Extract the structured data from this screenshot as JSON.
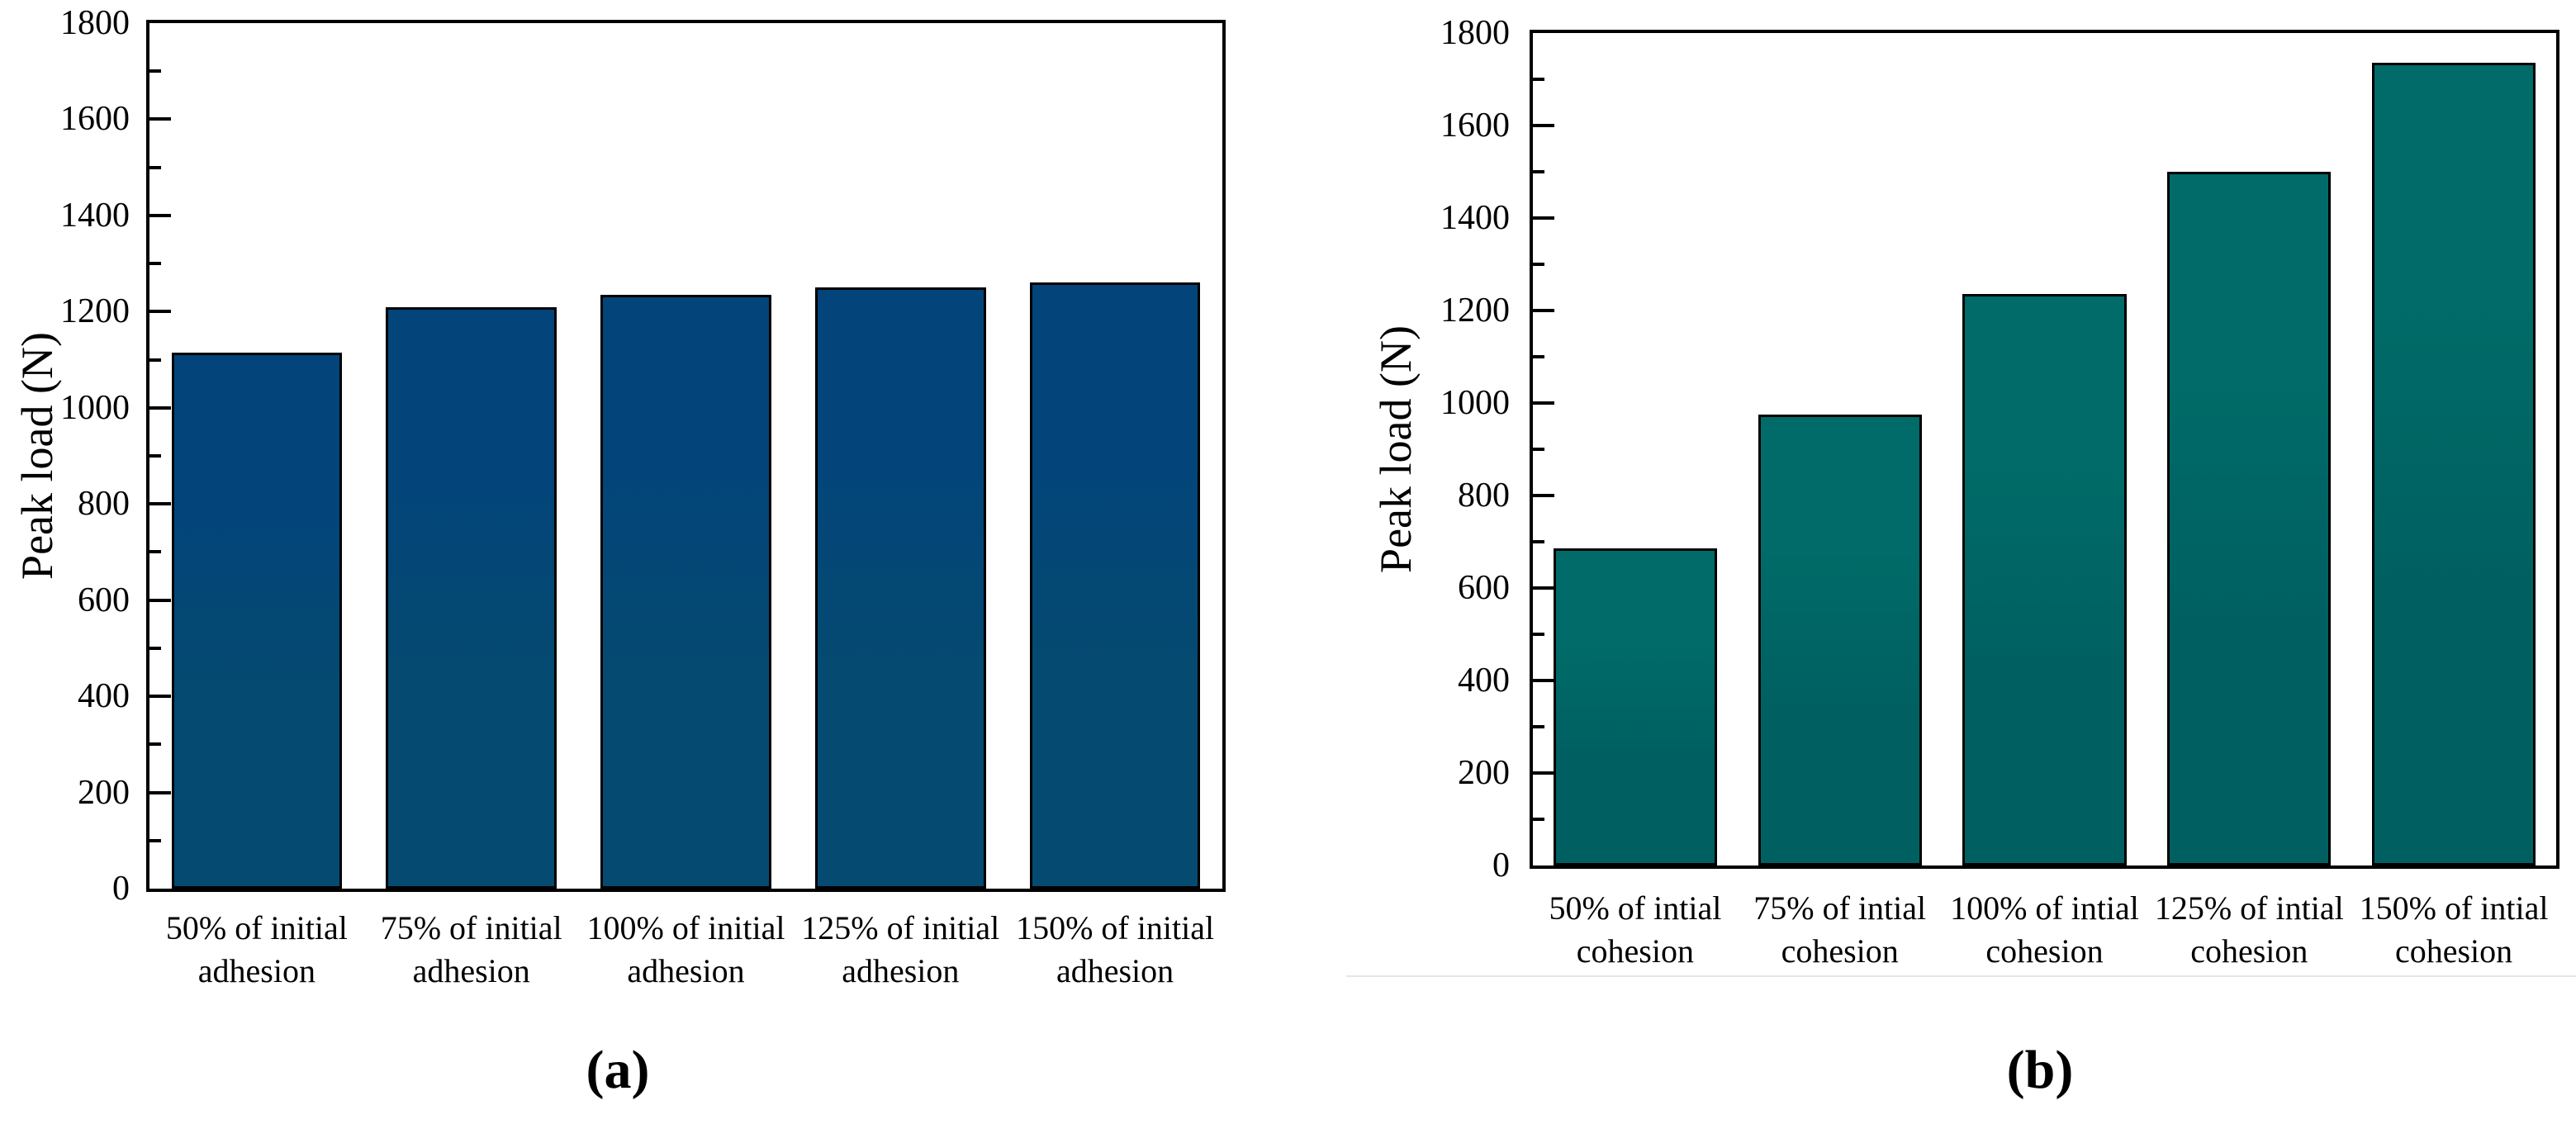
{
  "page": {
    "background": "#ffffff",
    "axis_color": "#000000",
    "divider_line_color": "#e6e6e6"
  },
  "chart_data": [
    {
      "panel_label": "(a)",
      "type": "bar",
      "title": "",
      "xlabel": "",
      "ylabel": "Peak load (N)",
      "ylim": [
        0,
        1800
      ],
      "ytick_major_step": 200,
      "ytick_minor_step": 100,
      "ytick_labels": [
        "0",
        "200",
        "400",
        "600",
        "800",
        "1000",
        "1200",
        "1400",
        "1600",
        "1800"
      ],
      "categories": [
        [
          "50% of initial",
          "adhesion"
        ],
        [
          "75% of initial",
          "adhesion"
        ],
        [
          "100% of initial",
          "adhesion"
        ],
        [
          "125% of initial",
          "adhesion"
        ],
        [
          "150% of initial",
          "adhesion"
        ]
      ],
      "values": [
        1115,
        1210,
        1235,
        1250,
        1260
      ],
      "bar_fill_top": "#03457a",
      "bar_fill_bottom": "#054a70",
      "bar_border": "#000000",
      "grid": false,
      "frame": "full-box",
      "tick_direction": "in"
    },
    {
      "panel_label": "(b)",
      "type": "bar",
      "title": "",
      "xlabel": "",
      "ylabel": "Peak load (N)",
      "ylim": [
        0,
        1800
      ],
      "ytick_major_step": 200,
      "ytick_minor_step": 100,
      "ytick_labels": [
        "0",
        "200",
        "400",
        "600",
        "800",
        "1000",
        "1200",
        "1400",
        "1600",
        "1800"
      ],
      "categories": [
        [
          "50% of intial",
          "cohesion"
        ],
        [
          "75% of intial",
          "cohesion"
        ],
        [
          "100% of intial",
          "cohesion"
        ],
        [
          "125% of intial",
          "cohesion"
        ],
        [
          "150% of intial",
          "cohesion"
        ]
      ],
      "values": [
        685,
        975,
        1235,
        1500,
        1735
      ],
      "bar_fill_top": "#006b68",
      "bar_fill_bottom": "#006061",
      "bar_border": "#000000",
      "grid": false,
      "frame": "full-box",
      "tick_direction": "in"
    }
  ]
}
